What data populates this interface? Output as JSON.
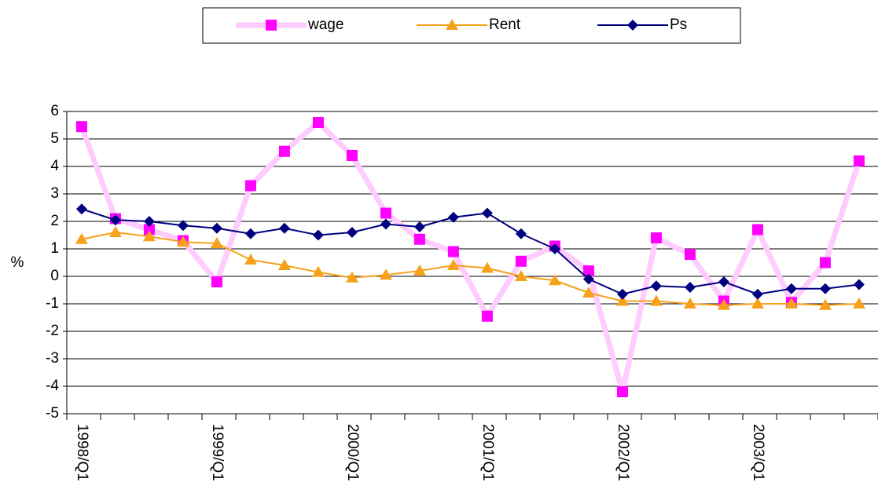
{
  "chart_data": {
    "type": "line",
    "y_label": "%",
    "categories": [
      "1998/Q1",
      null,
      null,
      null,
      "1999/Q1",
      null,
      null,
      null,
      "2000/Q1",
      null,
      null,
      null,
      "2001/Q1",
      null,
      null,
      null,
      "2002/Q1",
      null,
      null,
      null,
      "2003/Q1",
      null,
      null,
      null
    ],
    "series": [
      {
        "name": "wage",
        "color": "#ff00ff",
        "line_color": "#ffccff",
        "marker": "square",
        "values": [
          5.45,
          2.1,
          1.7,
          1.3,
          -0.2,
          3.3,
          4.55,
          5.6,
          4.4,
          2.3,
          1.35,
          0.9,
          -1.45,
          0.55,
          1.1,
          0.2,
          -4.2,
          1.4,
          0.8,
          -0.9,
          1.7,
          -0.95,
          0.5,
          4.2
        ]
      },
      {
        "name": "Rent",
        "color": "#f7a11a",
        "line_color": "#f7a11a",
        "marker": "triangle",
        "values": [
          1.35,
          1.6,
          1.45,
          1.25,
          1.2,
          0.6,
          0.4,
          0.15,
          -0.05,
          0.05,
          0.2,
          0.4,
          0.3,
          0,
          -0.15,
          -0.6,
          -0.9,
          -0.9,
          -1.0,
          -1.05,
          -1.0,
          -1.0,
          -1.05,
          -1.0
        ]
      },
      {
        "name": "Ps",
        "color": "#000080",
        "line_color": "#000080",
        "marker": "diamond",
        "values": [
          2.45,
          2.05,
          2.0,
          1.85,
          1.75,
          1.55,
          1.75,
          1.5,
          1.6,
          1.9,
          1.8,
          2.15,
          2.3,
          1.55,
          1.0,
          -0.1,
          -0.65,
          -0.35,
          -0.4,
          -0.2,
          -0.65,
          -0.45,
          -0.45,
          -0.3
        ]
      }
    ],
    "ylim": [
      -5,
      6
    ],
    "yticks": [
      -5,
      -4,
      -3,
      -2,
      -1,
      0,
      1,
      2,
      3,
      4,
      5,
      6
    ],
    "grid": true
  }
}
